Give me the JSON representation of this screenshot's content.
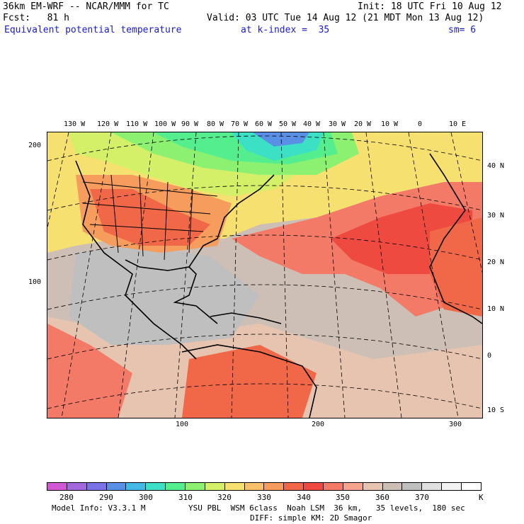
{
  "header": {
    "model_title": "36km EM-WRF -- NCAR/MMM for TC",
    "init": "Init: 18 UTC Fri 10 Aug 12",
    "forecast": "Fcst:   81 h",
    "valid": "Valid: 03 UTC Tue 14 Aug 12 (21 MDT Mon 13 Aug 12)",
    "field_name": "Equivalent potential temperature",
    "level": "at k-index =  35",
    "smoothing": "sm= 6"
  },
  "map": {
    "top_longitude_labels": [
      "130 W",
      "120 W",
      "110 W",
      "100 W",
      "90 W",
      "80 W",
      "70 W",
      "60 W",
      "50 W",
      "40 W",
      "30 W",
      "20 W",
      "10 W",
      "0",
      "10 E"
    ],
    "right_latitude_labels": [
      "40 N",
      "30 N",
      "20 N",
      "10 N",
      "0",
      "10 S"
    ],
    "left_grid_labels": [
      "200",
      "100"
    ],
    "bottom_grid_labels": [
      "100",
      "200",
      "300"
    ]
  },
  "colorbar": {
    "colors": [
      "#d257d2",
      "#a468dd",
      "#7a72e6",
      "#5a8fe6",
      "#44b9e6",
      "#3ce0c4",
      "#54ee8e",
      "#8cf070",
      "#d4f068",
      "#f6e070",
      "#f8c06a",
      "#f69c5c",
      "#f06848",
      "#ee4a40",
      "#f47a68",
      "#f6a48e",
      "#e6c4b0",
      "#cdbfb6",
      "#bfbfbf",
      "#e0e0e0",
      "#f2f2f2",
      "#ffffff"
    ],
    "labels": [
      "280",
      "290",
      "300",
      "310",
      "320",
      "330",
      "340",
      "350",
      "360",
      "370",
      "K"
    ]
  },
  "footer": {
    "model_info": "Model Info: V3.3.1 M",
    "physics": "YSU PBL  WSM 6class  Noah LSM  36 km,   35 levels,  180 sec",
    "diffusion": "DIFF: simple KM: 2D Smagor"
  }
}
